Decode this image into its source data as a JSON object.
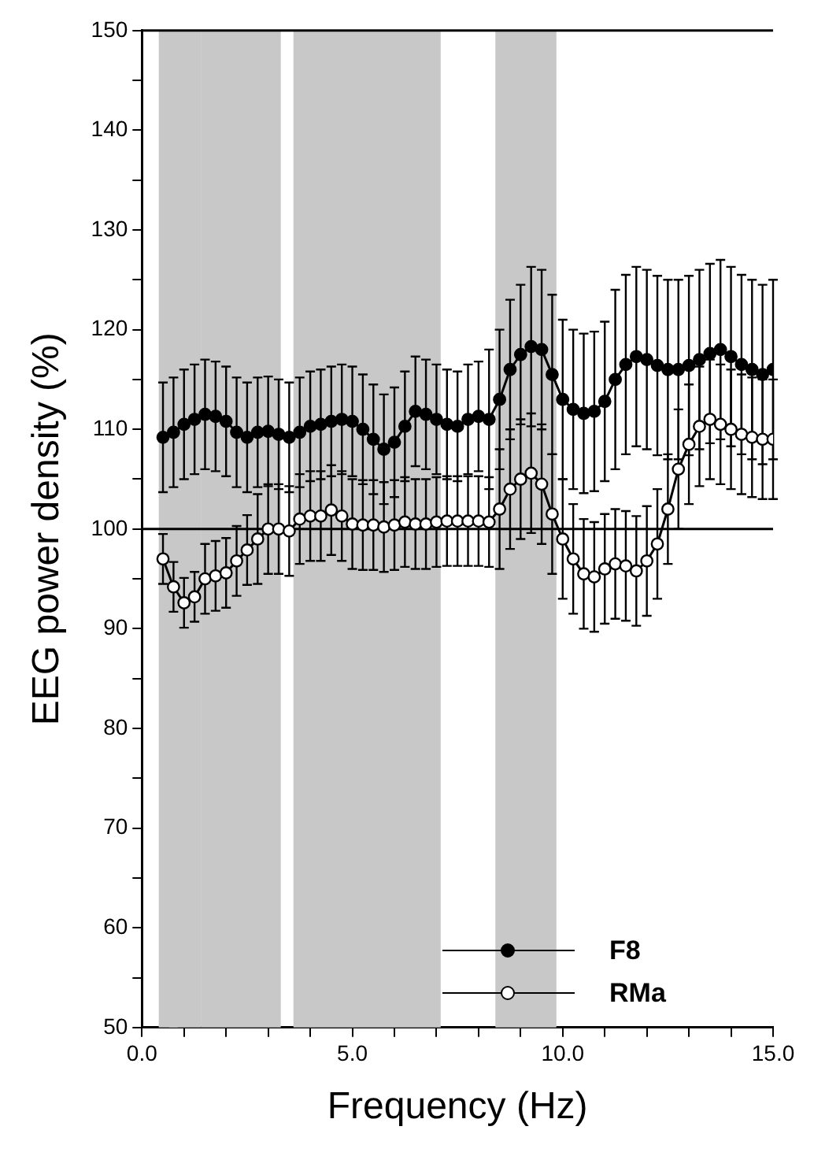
{
  "chart_data": {
    "type": "line",
    "xlabel": "Frequency (Hz)",
    "ylabel": "EEG power density (%)",
    "x": [
      0.5,
      0.75,
      1.0,
      1.25,
      1.5,
      1.75,
      2.0,
      2.25,
      2.5,
      2.75,
      3.0,
      3.25,
      3.5,
      3.75,
      4.0,
      4.25,
      4.5,
      4.75,
      5.0,
      5.25,
      5.5,
      5.75,
      6.0,
      6.25,
      6.5,
      6.75,
      7.0,
      7.25,
      7.5,
      7.75,
      8.0,
      8.25,
      8.5,
      8.75,
      9.0,
      9.25,
      9.5,
      9.75,
      10.0,
      10.25,
      10.5,
      10.75,
      11.0,
      11.25,
      11.5,
      11.75,
      12.0,
      12.25,
      12.5,
      12.75,
      13.0,
      13.25,
      13.5,
      13.75,
      14.0,
      14.25,
      14.5,
      14.75,
      15.0
    ],
    "series": [
      {
        "name": "F8",
        "color": "#000000",
        "marker": "circle",
        "values": [
          109.2,
          109.7,
          110.5,
          111,
          111.5,
          111.3,
          110.8,
          109.7,
          109.2,
          109.7,
          109.8,
          109.5,
          109.2,
          109.7,
          110.3,
          110.5,
          110.8,
          111,
          110.8,
          110,
          109,
          108,
          108.7,
          110.3,
          111.8,
          111.5,
          111,
          110.5,
          110.3,
          111,
          111.3,
          111,
          113,
          116,
          117.5,
          118.3,
          118,
          115.5,
          113,
          112,
          111.6,
          111.8,
          112.8,
          115,
          116.5,
          117.3,
          117,
          116.4,
          116,
          116,
          116.4,
          117,
          117.6,
          118,
          117.3,
          116.5,
          116,
          115.5,
          116
        ],
        "errors": [
          5.5,
          5.5,
          5.5,
          5.5,
          5.5,
          5.5,
          5.5,
          5.5,
          5.5,
          5.5,
          5.5,
          5.5,
          5.5,
          5.5,
          5.5,
          5.5,
          5.5,
          5.5,
          5.5,
          5.5,
          5.5,
          5.5,
          5.5,
          5.5,
          5.5,
          5.5,
          5.5,
          5.5,
          5.5,
          5.5,
          5.5,
          7,
          7,
          7,
          7,
          8,
          8,
          8,
          8,
          8,
          8,
          8,
          8,
          9,
          9,
          9,
          9,
          9,
          9,
          9,
          9,
          9,
          9,
          9,
          9,
          9,
          9,
          9,
          9
        ]
      },
      {
        "name": "RMa",
        "color": "#ffffff",
        "marker": "circle",
        "values": [
          97,
          94.2,
          92.6,
          93.2,
          95,
          95.3,
          95.6,
          96.8,
          97.9,
          99,
          100,
          100,
          99.8,
          101,
          101.3,
          101.3,
          101.9,
          101.3,
          100.5,
          100.4,
          100.4,
          100.2,
          100.4,
          100.7,
          100.5,
          100.5,
          100.7,
          100.8,
          100.8,
          100.8,
          100.8,
          100.7,
          102,
          104,
          105,
          105.6,
          104.5,
          101.5,
          99,
          97,
          95.5,
          95.2,
          96,
          96.5,
          96.3,
          95.8,
          96.8,
          98.5,
          102,
          106,
          108.5,
          110.3,
          111,
          110.5,
          110,
          109.5,
          109.2,
          109,
          109
        ],
        "errors": [
          2.5,
          2.5,
          2.5,
          2.5,
          3.5,
          3.5,
          3.5,
          3.5,
          3.5,
          4.5,
          4.5,
          4.5,
          4.5,
          4.5,
          4.5,
          4.5,
          4.5,
          4.5,
          4.5,
          4.5,
          4.5,
          4.5,
          4.5,
          4.5,
          4.5,
          4.5,
          4.5,
          4.5,
          4.5,
          4.5,
          4.5,
          4.5,
          6,
          6,
          6,
          6,
          6,
          6,
          6,
          5.5,
          5.5,
          5.5,
          5.5,
          5.5,
          5.5,
          5.5,
          5.5,
          5.5,
          5.5,
          6,
          6,
          6,
          6,
          6,
          6,
          6,
          6,
          6,
          6
        ]
      }
    ],
    "xlim": [
      0,
      15
    ],
    "xticks": [
      {
        "value": 0,
        "label": "0.0"
      },
      {
        "value": 1,
        "label": null
      },
      {
        "value": 2,
        "label": null
      },
      {
        "value": 3,
        "label": null
      },
      {
        "value": 4,
        "label": null
      },
      {
        "value": 5,
        "label": "5.0"
      },
      {
        "value": 6,
        "label": null
      },
      {
        "value": 7,
        "label": null
      },
      {
        "value": 8,
        "label": null
      },
      {
        "value": 9,
        "label": null
      },
      {
        "value": 10,
        "label": "10.0"
      },
      {
        "value": 11,
        "label": null
      },
      {
        "value": 12,
        "label": null
      },
      {
        "value": 13,
        "label": null
      },
      {
        "value": 14,
        "label": null
      },
      {
        "value": 15,
        "label": "15.0"
      }
    ],
    "ylim": [
      50,
      150
    ],
    "yticks": [
      50,
      {
        "value": 55,
        "label": null
      },
      60,
      {
        "value": 65,
        "label": null
      },
      70,
      {
        "value": 75,
        "label": null
      },
      80,
      {
        "value": 85,
        "label": null
      },
      90,
      {
        "value": 95,
        "label": null
      },
      100,
      {
        "value": 105,
        "label": null
      },
      110,
      {
        "value": 115,
        "label": null
      },
      120,
      {
        "value": 125,
        "label": null
      },
      130,
      {
        "value": 135,
        "label": null
      },
      140,
      {
        "value": 145,
        "label": null
      },
      150
    ],
    "ref_lines": [
      {
        "axis": "y",
        "value": 100,
        "color": "#000000",
        "line_style": "solid"
      }
    ],
    "bands": [
      {
        "axis": "x",
        "from": 0.4,
        "to": 0.85,
        "color": "#c8c8c8"
      },
      {
        "axis": "x",
        "from": 1.4,
        "to": 3.3,
        "color": "#c8c8c8"
      },
      {
        "axis": "x",
        "from": 3.6,
        "to": 7.1,
        "color": "#c8c8c8"
      },
      {
        "axis": "x",
        "from": 8.4,
        "to": 9.85,
        "color": "#c8c8c8"
      },
      {
        "axis": "x",
        "from": 0.65,
        "to": 1.4,
        "color": "#c8c8c8"
      }
    ],
    "legend": "bottom right",
    "grid": false,
    "line_style": "solid"
  }
}
